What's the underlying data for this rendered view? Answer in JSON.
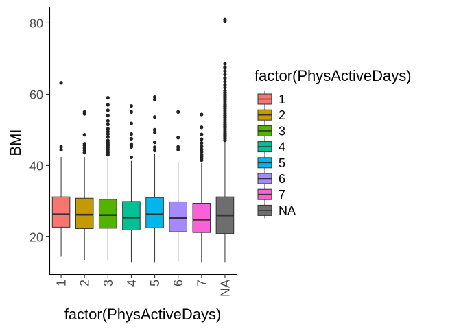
{
  "chart_data": {
    "type": "boxplot",
    "xlabel": "factor(PhysActiveDays)",
    "ylabel": "BMI",
    "categories": [
      "1",
      "2",
      "3",
      "4",
      "5",
      "6",
      "7",
      "NA"
    ],
    "ylim": [
      9.5,
      84.5
    ],
    "yticks": [
      20,
      40,
      60,
      80
    ],
    "grid": false,
    "legend": {
      "title": "factor(PhysActiveDays)",
      "position": "right",
      "entries": [
        "1",
        "2",
        "3",
        "4",
        "5",
        "6",
        "7",
        "NA"
      ]
    },
    "colors": [
      "#F8766D",
      "#C49A00",
      "#53B400",
      "#00C094",
      "#00B6EB",
      "#A58AFF",
      "#FB61D7",
      "#6E6E6E"
    ],
    "boxes": [
      {
        "category": "1",
        "whisker_low": 14.4,
        "q1": 22.7,
        "median": 26.3,
        "q3": 31.2,
        "whisker_high": 42.4,
        "outliers": [
          44.4,
          45.2,
          63.2
        ]
      },
      {
        "category": "2",
        "whisker_low": 13.5,
        "q1": 22.3,
        "median": 26.2,
        "q3": 30.8,
        "whisker_high": 42.4,
        "outliers": [
          43.6,
          44.2,
          44.9,
          45.6,
          46.1,
          48.6,
          54.5,
          55.0
        ]
      },
      {
        "category": "3",
        "whisker_low": 13.3,
        "q1": 22.4,
        "median": 26.1,
        "q3": 30.5,
        "whisker_high": 42.0,
        "outliers": [
          43.0,
          43.6,
          44.0,
          44.5,
          45.0,
          45.5,
          46.0,
          46.5,
          47.0,
          48.0,
          48.8,
          49.5,
          50.3,
          51.5,
          52.5,
          54.0,
          55.5,
          57.0,
          59.0
        ]
      },
      {
        "category": "4",
        "whisker_low": 12.9,
        "q1": 21.9,
        "median": 25.4,
        "q3": 29.9,
        "whisker_high": 41.3,
        "outliers": [
          42.3,
          45.2,
          45.6,
          46.0,
          47.5,
          48.8,
          51.8,
          55.0,
          56.7
        ]
      },
      {
        "category": "5",
        "whisker_low": 12.9,
        "q1": 22.5,
        "median": 26.3,
        "q3": 31.0,
        "whisker_high": 43.2,
        "outliers": [
          44.2,
          45.1,
          46.5,
          49.3,
          50.0,
          53.6,
          58.5,
          59.2
        ]
      },
      {
        "category": "6",
        "whisker_low": 13.1,
        "q1": 21.4,
        "median": 25.2,
        "q3": 29.8,
        "whisker_high": 41.1,
        "outliers": [
          44.5,
          45.2,
          47.8,
          55.0
        ]
      },
      {
        "category": "7",
        "whisker_low": 12.9,
        "q1": 21.2,
        "median": 24.8,
        "q3": 29.4,
        "whisker_high": 40.7,
        "outliers": [
          41.5,
          42.0,
          42.5,
          43.0,
          43.8,
          44.5,
          45.3,
          46.3,
          47.4,
          48.7,
          50.7,
          54.3
        ]
      },
      {
        "category": "NA",
        "whisker_low": 12.9,
        "q1": 20.9,
        "median": 26.0,
        "q3": 31.2,
        "whisker_high": 46.4,
        "outliers": [
          47.0,
          47.5,
          48.0,
          48.5,
          49.0,
          49.5,
          50.0,
          50.5,
          51.0,
          51.5,
          52.0,
          52.5,
          53.0,
          53.5,
          54.0,
          54.5,
          55.0,
          55.5,
          56.0,
          56.5,
          57.0,
          57.5,
          58.0,
          58.5,
          59.0,
          59.5,
          60.0,
          60.5,
          61.0,
          61.8,
          62.6,
          63.5,
          64.5,
          65.5,
          66.5,
          67.5,
          68.5,
          80.5,
          81.0
        ]
      }
    ]
  }
}
